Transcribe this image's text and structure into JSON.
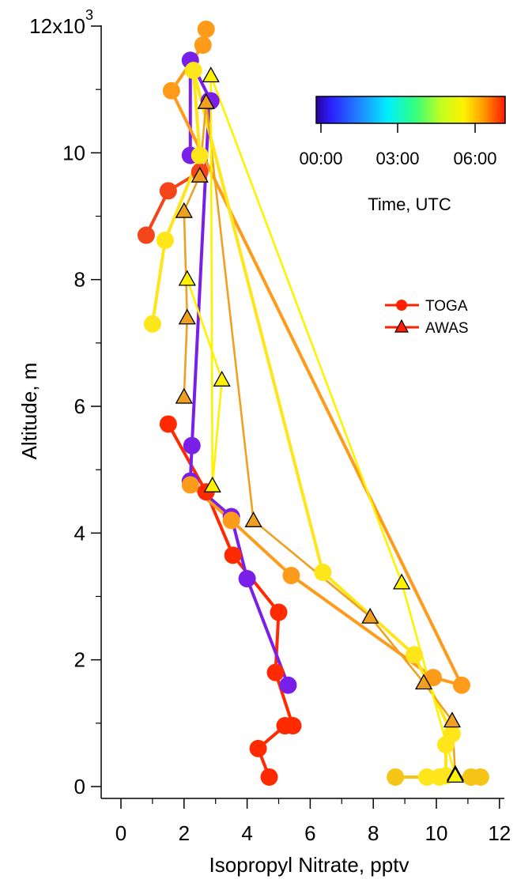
{
  "chart_data": {
    "type": "line",
    "xlabel": "Isopropyl Nitrate, pptv",
    "ylabel": "Altitude, m",
    "xlim": [
      -0.6,
      12
    ],
    "ylim": [
      -400,
      12000
    ],
    "x_ticks": [
      0,
      2,
      4,
      6,
      8,
      10,
      12
    ],
    "y_ticks": [
      0,
      2000,
      4000,
      6000,
      8000,
      10000,
      12000
    ],
    "x_tick_labels": [
      "0",
      "2",
      "4",
      "6",
      "8",
      "10",
      "12"
    ],
    "y_tick_labels": [
      "0",
      "2",
      "4",
      "6",
      "8",
      "10",
      "12x10"
    ],
    "y_exponent": "3",
    "grid": false,
    "legend": {
      "placement": "right-middle",
      "entries": [
        {
          "name": "TOGA",
          "marker": "circle",
          "color": "#ff2000"
        },
        {
          "name": "AWAS",
          "marker": "triangle",
          "color": "#ff2000"
        }
      ]
    },
    "colorbar": {
      "title": "Time, UTC",
      "tick_labels": [
        "00:00",
        "03:00",
        "06:00"
      ],
      "placement": "top-right"
    },
    "series": [
      {
        "instrument": "TOGA",
        "marker": "circle",
        "color": "#ff2a00",
        "x": [
          4.7,
          4.35,
          5.2,
          5.45,
          4.9,
          5.0,
          3.55,
          2.7,
          1.5
        ],
        "y": [
          150,
          600,
          960,
          960,
          1800,
          2750,
          3650,
          4650,
          5720
        ]
      },
      {
        "instrument": "TOGA",
        "marker": "circle",
        "color": "#7a1fe8",
        "x": [
          5.3,
          4.0,
          3.5,
          2.2,
          2.25,
          2.8,
          2.85,
          2.2,
          2.2
        ],
        "y": [
          1600,
          3280,
          4260,
          4820,
          5380,
          10820,
          10820,
          11460,
          9960
        ]
      },
      {
        "instrument": "TOGA",
        "marker": "circle",
        "color": "#f4441a",
        "x": [
          0.8,
          1.5,
          2.5
        ],
        "y": [
          8700,
          9400,
          9700
        ]
      },
      {
        "instrument": "TOGA",
        "marker": "circle",
        "color": "#ff9b1a",
        "x": [
          2.2,
          3.5,
          5.4,
          9.9,
          10.8,
          1.6,
          2.6,
          2.7
        ],
        "y": [
          4760,
          4200,
          3330,
          1720,
          1600,
          10980,
          11700,
          11950
        ]
      },
      {
        "instrument": "TOGA",
        "marker": "circle",
        "color": "#ffe61a",
        "x": [
          1.0,
          1.4,
          2.5,
          2.3,
          6.4,
          9.3,
          10.5,
          10.3,
          10.3,
          10.1,
          9.7
        ],
        "y": [
          7300,
          8620,
          9960,
          11300,
          3380,
          2080,
          830,
          660,
          170,
          150,
          150
        ]
      },
      {
        "instrument": "TOGA",
        "marker": "circle",
        "color": "#f5c518",
        "x": [
          8.7,
          11.1,
          11.4
        ],
        "y": [
          150,
          150,
          150
        ]
      },
      {
        "instrument": "AWAS",
        "marker": "triangle",
        "color": "#f0a020",
        "x": [
          2.0,
          2.1,
          2.0,
          2.5,
          2.7,
          4.2,
          7.9,
          9.6,
          10.5,
          10.6
        ],
        "y": [
          6150,
          7400,
          9080,
          9640,
          10800,
          4200,
          2680,
          1640,
          1040,
          200
        ]
      },
      {
        "instrument": "AWAS",
        "marker": "triangle",
        "color": "#fff200",
        "x": [
          2.1,
          3.2,
          2.9,
          2.85,
          8.9,
          10.6
        ],
        "y": [
          8010,
          6420,
          4750,
          11220,
          3220,
          170
        ]
      }
    ]
  }
}
